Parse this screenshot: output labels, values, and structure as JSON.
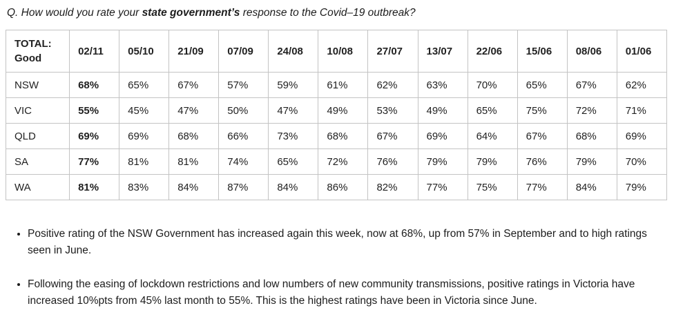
{
  "title": {
    "prefix": "Q. How would you rate your ",
    "emphasis": "state government’s",
    "suffix": " response to the Covid–19 outbreak?"
  },
  "table": {
    "header": {
      "label_line1": "TOTAL:",
      "label_line2": "Good",
      "dates": [
        "02/11",
        "05/10",
        "21/09",
        "07/09",
        "24/08",
        "10/08",
        "27/07",
        "13/07",
        "22/06",
        "15/06",
        "08/06",
        "01/06"
      ]
    },
    "rows": [
      {
        "state": "NSW",
        "values": [
          "68%",
          "65%",
          "67%",
          "57%",
          "59%",
          "61%",
          "62%",
          "63%",
          "70%",
          "65%",
          "67%",
          "62%"
        ]
      },
      {
        "state": "VIC",
        "values": [
          "55%",
          "45%",
          "47%",
          "50%",
          "47%",
          "49%",
          "53%",
          "49%",
          "65%",
          "75%",
          "72%",
          "71%"
        ]
      },
      {
        "state": "QLD",
        "values": [
          "69%",
          "69%",
          "68%",
          "66%",
          "73%",
          "68%",
          "67%",
          "69%",
          "64%",
          "67%",
          "68%",
          "69%"
        ]
      },
      {
        "state": "SA",
        "values": [
          "77%",
          "81%",
          "81%",
          "74%",
          "65%",
          "72%",
          "76%",
          "79%",
          "79%",
          "76%",
          "79%",
          "70%"
        ]
      },
      {
        "state": "WA",
        "values": [
          "81%",
          "83%",
          "84%",
          "87%",
          "84%",
          "86%",
          "82%",
          "77%",
          "75%",
          "77%",
          "84%",
          "79%"
        ]
      }
    ]
  },
  "bullets": [
    "Positive rating of the NSW Government has increased again this week, now at 68%, up from 57% in September and to high ratings seen in June.",
    "Following the easing of lockdown restrictions and low numbers of new community transmissions, positive ratings in Victoria have increased 10%pts from 45% last month to 55%. This is the highest ratings have been in Victoria since June."
  ],
  "colors": {
    "text": "#222222",
    "border": "#c3c3c3",
    "background": "#ffffff"
  }
}
